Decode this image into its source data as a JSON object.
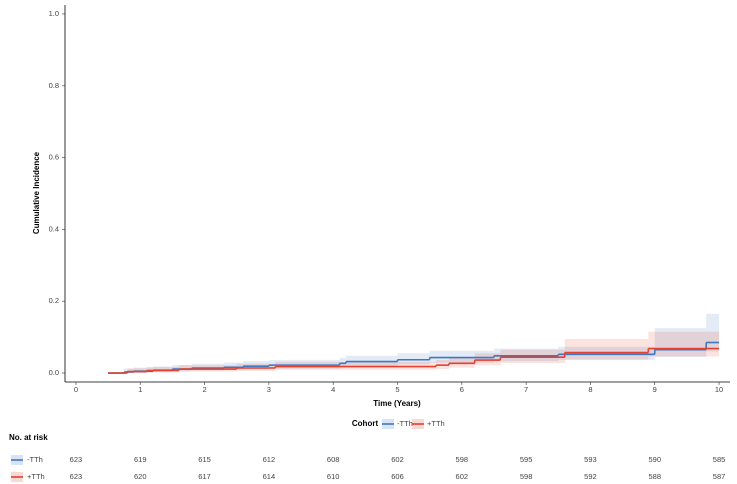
{
  "chart_data": {
    "type": "step",
    "y_label": "Cumulative Incidence",
    "x_label": "Time (Years)",
    "legend_title": "Cohort",
    "xlim": [
      -0.17,
      10.17
    ],
    "ylim": [
      -0.025,
      1.025
    ],
    "xticks": [
      0,
      1,
      2,
      3,
      4,
      5,
      6,
      7,
      8,
      9,
      10
    ],
    "yticks": [
      {
        "value": 0,
        "label": "0.0"
      },
      0.2,
      0.4,
      0.6,
      0.8,
      {
        "value": 1,
        "label": "1.0"
      }
    ],
    "series": [
      {
        "name": "-TTh",
        "color": "#3d78c2",
        "x": [
          0.5,
          0.75,
          0.9,
          1.2,
          1.5,
          1.8,
          2.3,
          2.6,
          3.0,
          4.1,
          4.2,
          5.0,
          5.5,
          6.5,
          7.5,
          9.0,
          9.8,
          10.0
        ],
        "values": [
          0,
          0.003,
          0.005,
          0.008,
          0.011,
          0.014,
          0.016,
          0.019,
          0.022,
          0.027,
          0.032,
          0.037,
          0.043,
          0.048,
          0.052,
          0.065,
          0.085,
          0.085
        ],
        "lower": [
          0,
          0,
          0.001,
          0.003,
          0.005,
          0.007,
          0.008,
          0.01,
          0.012,
          0.016,
          0.02,
          0.024,
          0.029,
          0.033,
          0.036,
          0.045,
          0.06,
          0.06
        ],
        "upper": [
          0,
          0.012,
          0.015,
          0.018,
          0.022,
          0.026,
          0.029,
          0.033,
          0.036,
          0.042,
          0.048,
          0.055,
          0.062,
          0.068,
          0.073,
          0.125,
          0.165,
          0.165
        ]
      },
      {
        "name": "+TTh",
        "color": "#e3402e",
        "x": [
          0.5,
          0.8,
          1.1,
          1.6,
          2.5,
          3.1,
          5.6,
          5.8,
          6.2,
          6.6,
          7.6,
          8.9,
          10.0
        ],
        "values": [
          0,
          0.004,
          0.007,
          0.011,
          0.014,
          0.018,
          0.022,
          0.027,
          0.036,
          0.044,
          0.057,
          0.068,
          0.068
        ],
        "lower": [
          0,
          0,
          0.002,
          0.004,
          0.006,
          0.009,
          0.011,
          0.015,
          0.022,
          0.028,
          0.038,
          0.046,
          0.046
        ],
        "upper": [
          0,
          0.013,
          0.017,
          0.022,
          0.026,
          0.031,
          0.036,
          0.042,
          0.055,
          0.065,
          0.095,
          0.115,
          0.115
        ]
      }
    ]
  },
  "risk_table": {
    "title": "No. at risk",
    "rows": [
      {
        "counts": [
          623,
          619,
          615,
          612,
          608,
          602,
          598,
          595,
          593,
          590,
          585
        ]
      },
      {
        "counts": [
          623,
          620,
          617,
          614,
          610,
          606,
          602,
          598,
          592,
          588,
          587
        ]
      }
    ]
  }
}
